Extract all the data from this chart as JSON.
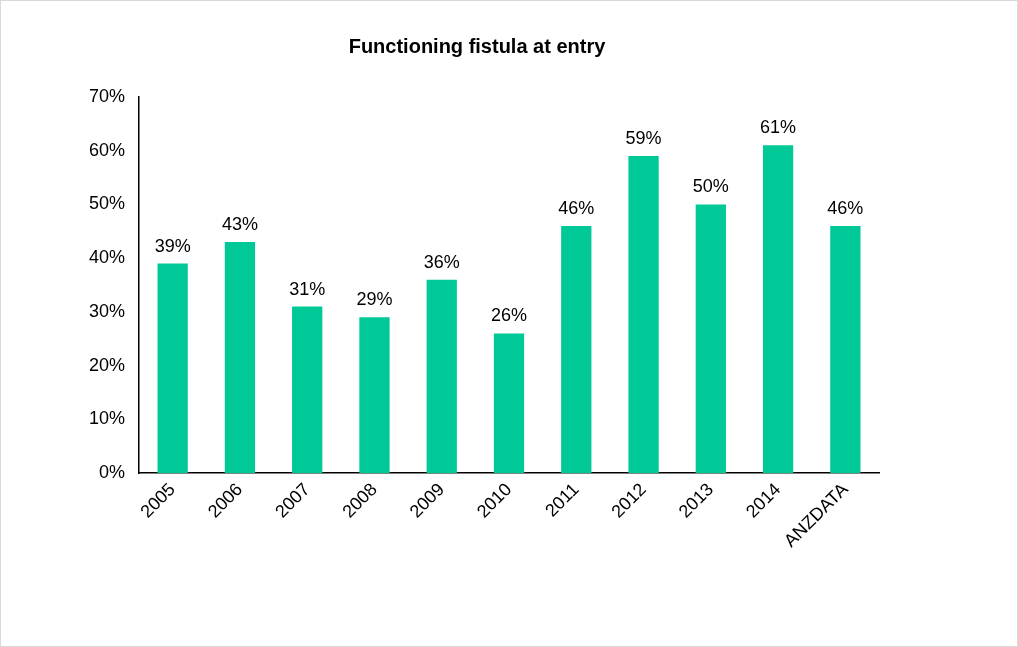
{
  "chart_data": {
    "type": "bar",
    "title": "Functioning fistula at entry",
    "categories": [
      "2005",
      "2006",
      "2007",
      "2008",
      "2009",
      "2010",
      "2011",
      "2012",
      "2013",
      "2014",
      "ANZDATA"
    ],
    "values": [
      39,
      43,
      31,
      29,
      36,
      26,
      46,
      59,
      50,
      61,
      46
    ],
    "value_labels": [
      "39%",
      "43%",
      "31%",
      "29%",
      "36%",
      "26%",
      "46%",
      "59%",
      "50%",
      "61%",
      "46%"
    ],
    "color": "#00c896",
    "ylim": [
      0,
      70
    ],
    "yticks": [
      {
        "value": 0,
        "label": "0%"
      },
      {
        "value": 10,
        "label": "10%"
      },
      {
        "value": 20,
        "label": "20%"
      },
      {
        "value": 30,
        "label": "30%"
      },
      {
        "value": 40,
        "label": "40%"
      },
      {
        "value": 50,
        "label": "50%"
      },
      {
        "value": 60,
        "label": "60%"
      },
      {
        "value": 70,
        "label": "70%"
      }
    ],
    "grid": false,
    "legend": false
  }
}
